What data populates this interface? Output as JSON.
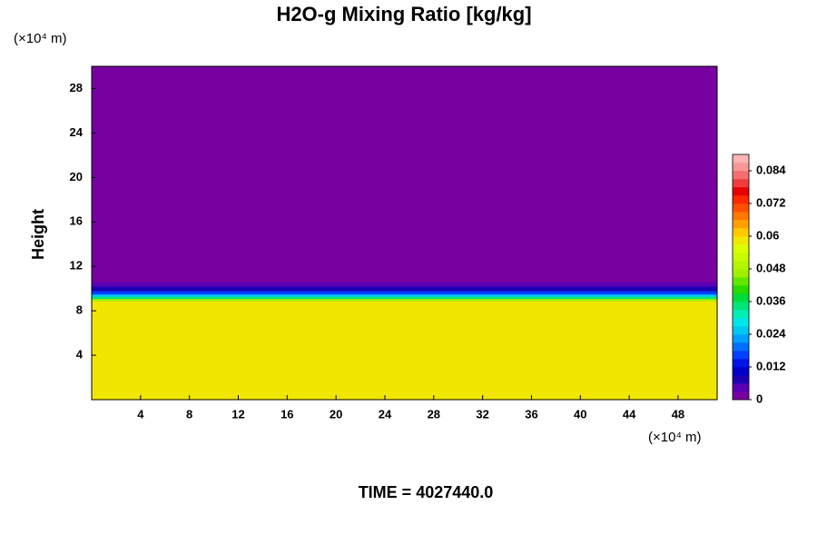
{
  "chart_data": {
    "type": "contour",
    "title": "H2O-g Mixing Ratio [kg/kg]",
    "y_label": "Height",
    "x_unit": "(×10⁴ m)",
    "y_unit": "(×10⁴ m)",
    "footer": "TIME = 4027440.0",
    "xlim": [
      0,
      51.2
    ],
    "xticks": [
      4,
      8,
      12,
      16,
      20,
      24,
      28,
      32,
      36,
      40,
      44,
      48
    ],
    "ylim": [
      0,
      30
    ],
    "yticks": [
      4,
      8,
      12,
      16,
      20,
      24,
      28
    ],
    "y_edges": [
      0,
      8.9,
      9.1,
      9.3,
      9.5,
      9.8,
      10.2,
      10.6,
      30
    ],
    "values": [
      0.058,
      0.045,
      0.033,
      0.026,
      0.018,
      0.009,
      0.004,
      0
    ],
    "clim": [
      0,
      0.09
    ],
    "cticks": [
      0,
      0.012,
      0.024,
      0.036,
      0.048,
      0.06,
      0.072,
      0.084
    ],
    "colormap": [
      "#7800a0",
      "#5a00b4",
      "#1e00b4",
      "#0000c8",
      "#0014e6",
      "#0040ff",
      "#0070ff",
      "#00a0ff",
      "#00c8f0",
      "#00e6e6",
      "#00f0b4",
      "#00e678",
      "#00dc3c",
      "#28dc00",
      "#64e600",
      "#a0f000",
      "#b4f500",
      "#c8fa00",
      "#dcff00",
      "#f0e600",
      "#ffc800",
      "#ffa000",
      "#ff7800",
      "#ff5000",
      "#ff2800",
      "#e60000",
      "#f03c3c",
      "#f56e6e",
      "#fa9696",
      "#fab4b4"
    ]
  }
}
